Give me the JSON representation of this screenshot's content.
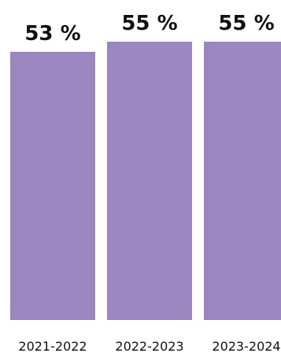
{
  "chart_data": {
    "type": "bar",
    "categories": [
      "2021-2022",
      "2022-2023",
      "2023-2024"
    ],
    "values": [
      53,
      55,
      55
    ],
    "value_labels": [
      "53 %",
      "55 %",
      "55 %"
    ],
    "ylim": [
      0,
      55
    ],
    "grid": false,
    "colors": {
      "bar": "#9b86bf",
      "value_text": "#111111",
      "tick_text": "#111111",
      "background": "#ffffff"
    }
  }
}
